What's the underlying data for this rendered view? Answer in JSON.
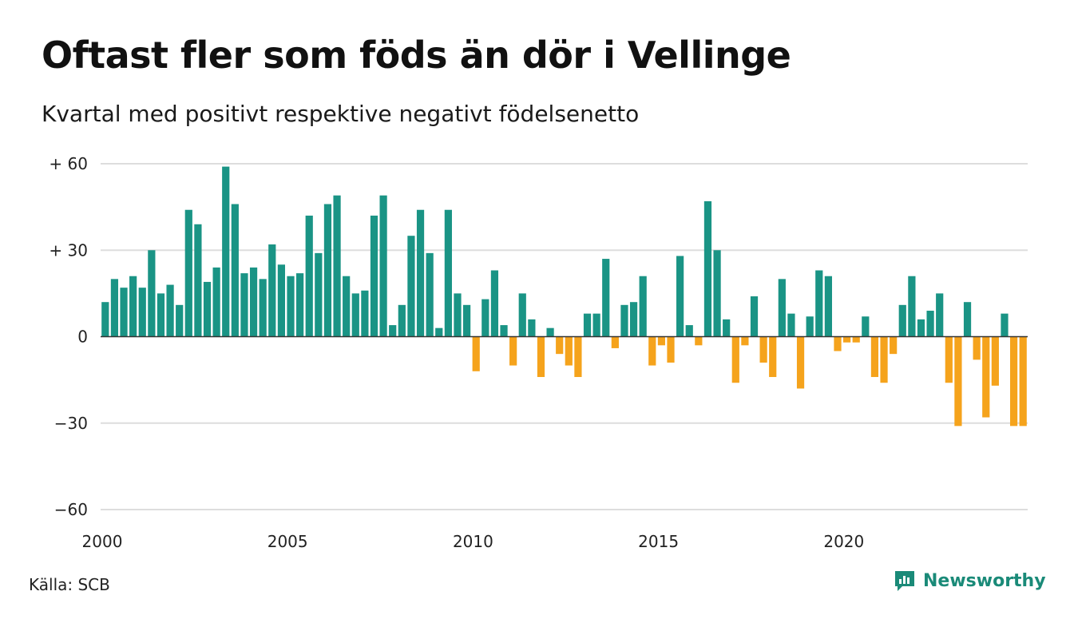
{
  "title": "Oftast fler som föds än dör i Vellinge",
  "subtitle": "Kvartal med positivt respektive negativt födelsenetto",
  "source": "Källa: SCB",
  "brand": {
    "name": "Newsworthy",
    "icon": "newsworthy-logo-icon"
  },
  "colors": {
    "positive": "#1a9485",
    "negative": "#f5a31c",
    "grid": "#dddddd",
    "zero": "#333333"
  },
  "chart_data": {
    "type": "bar",
    "title": "Oftast fler som föds än dör i Vellinge",
    "subtitle": "Kvartal med positivt respektive negativt födelsenetto",
    "ylim": [
      -60,
      60
    ],
    "yticks": [
      {
        "value": 60,
        "label": "+ 60"
      },
      {
        "value": 30,
        "label": "+ 30"
      },
      {
        "value": 0,
        "label": "0"
      },
      {
        "value": -30,
        "label": "−30"
      },
      {
        "value": -60,
        "label": "−60"
      }
    ],
    "xticks": [
      {
        "year": 2000,
        "label": "2000"
      },
      {
        "year": 2005,
        "label": "2005"
      },
      {
        "year": 2010,
        "label": "2010"
      },
      {
        "year": 2015,
        "label": "2015"
      },
      {
        "year": 2020,
        "label": "2020"
      }
    ],
    "grid": true,
    "legend": "none",
    "x_start": "2000 Q1",
    "x_end": "2024 Q4",
    "values": [
      12,
      20,
      17,
      21,
      17,
      30,
      15,
      18,
      11,
      44,
      39,
      19,
      24,
      59,
      46,
      22,
      24,
      20,
      32,
      25,
      21,
      22,
      42,
      29,
      46,
      49,
      21,
      15,
      16,
      42,
      49,
      4,
      11,
      35,
      44,
      29,
      3,
      44,
      15,
      11,
      -12,
      13,
      23,
      4,
      -10,
      15,
      6,
      -14,
      3,
      -6,
      -10,
      -14,
      8,
      8,
      27,
      -4,
      11,
      12,
      21,
      -10,
      -3,
      -9,
      28,
      4,
      -3,
      47,
      30,
      6,
      -16,
      -3,
      14,
      -9,
      -14,
      20,
      8,
      -18,
      7,
      23,
      21,
      -5,
      -2,
      -2,
      7,
      -14,
      -16,
      -6,
      11,
      21,
      6,
      9,
      15,
      -16,
      -31,
      12,
      -8,
      -28,
      -17,
      8,
      -31,
      -31
    ]
  }
}
